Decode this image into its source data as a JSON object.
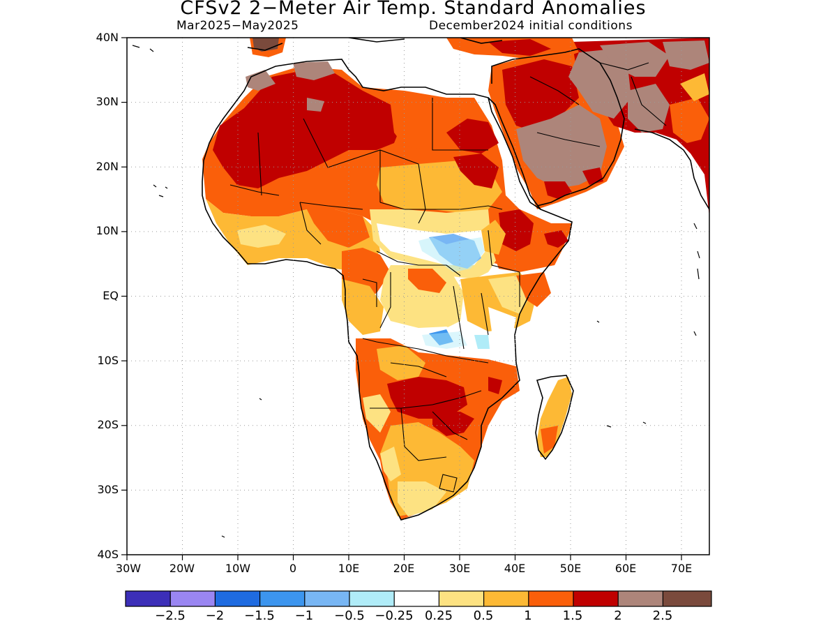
{
  "title": "CFSv2 2−Meter Air Temp. Standard Anomalies",
  "subtitle_left": "Mar2025−May2025",
  "subtitle_right": "December2024 initial conditions",
  "map": {
    "lon_range": [
      -30,
      75
    ],
    "lat_range": [
      -40,
      40
    ],
    "lat_labels": [
      "40N",
      "30N",
      "20N",
      "10N",
      "EQ",
      "10S",
      "20S",
      "30S",
      "40S"
    ],
    "lon_labels": [
      "30W",
      "20W",
      "10W",
      "0",
      "10E",
      "20E",
      "30E",
      "40E",
      "50E",
      "60E",
      "70E"
    ],
    "grid": true,
    "grid_style": "dotted"
  },
  "colorbar": {
    "colors": [
      "#3c2fb8",
      "#9a86f2",
      "#1f6be0",
      "#3c95ee",
      "#78b6f4",
      "#b0ecf8",
      "#ffffff",
      "#fde282",
      "#fdb935",
      "#fa5f0a",
      "#c00000",
      "#ad857a",
      "#7a4a3c"
    ],
    "labels": [
      "−2.5",
      "−2",
      "−1.5",
      "−1",
      "−0.5",
      "−0.25",
      "0.25",
      "0.5",
      "1",
      "1.5",
      "2",
      "2.5"
    ]
  }
}
